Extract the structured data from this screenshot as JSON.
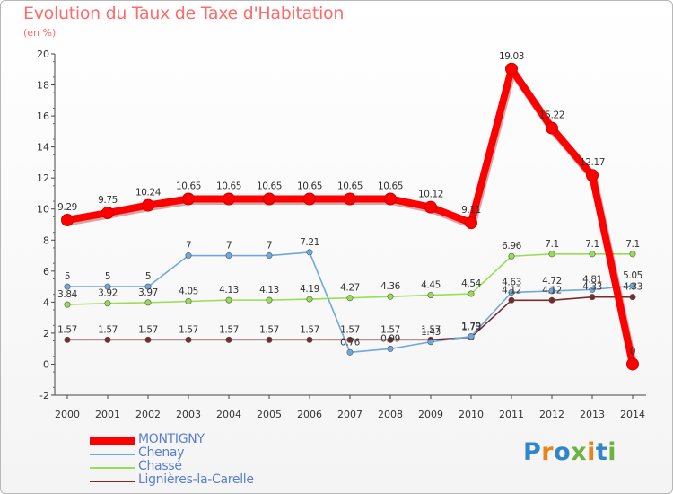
{
  "chart_data": {
    "type": "line",
    "title": "Evolution du Taux de Taxe d'Habitation",
    "ylabel": "(en %)",
    "xlabel": "",
    "x": [
      "2000",
      "2001",
      "2002",
      "2003",
      "2004",
      "2005",
      "2006",
      "2007",
      "2008",
      "2009",
      "2010",
      "2011",
      "2012",
      "2013",
      "2014"
    ],
    "ylim": [
      -2,
      20
    ],
    "yticks": [
      "-2",
      "0",
      "2",
      "4",
      "6",
      "8",
      "10",
      "12",
      "14",
      "16",
      "18",
      "20"
    ],
    "grid": false,
    "legend_position": "bottom-left",
    "series": [
      {
        "name": "MONTIGNY",
        "color": "#ff0000",
        "values": [
          9.29,
          9.75,
          10.24,
          10.65,
          10.65,
          10.65,
          10.65,
          10.65,
          10.65,
          10.12,
          9.11,
          19.03,
          15.22,
          12.17,
          0
        ],
        "labels": [
          "9.29",
          "9.75",
          "10.24",
          "10.65",
          "10.65",
          "10.65",
          "10.65",
          "10.65",
          "10.65",
          "10.12",
          "9.11",
          "19.03",
          "15.22",
          "12.17",
          "0"
        ]
      },
      {
        "name": "Chenay",
        "color": "#6fa8dc",
        "values": [
          5,
          5,
          5,
          7,
          7,
          7,
          7.21,
          0.76,
          0.99,
          1.43,
          1.79,
          4.63,
          4.72,
          4.81,
          5.05
        ],
        "labels": [
          "5",
          "5",
          "5",
          "7",
          "7",
          "7",
          "7.21",
          "0.76",
          "0.99",
          "1.43",
          "1.79",
          "4.63",
          "4.72",
          "4.81",
          "5.05"
        ]
      },
      {
        "name": "Chassé",
        "color": "#99dd55",
        "values": [
          3.84,
          3.92,
          3.97,
          4.05,
          4.13,
          4.13,
          4.19,
          4.27,
          4.36,
          4.45,
          4.54,
          6.96,
          7.1,
          7.1,
          7.1
        ],
        "labels": [
          "3.84",
          "3.92",
          "3.97",
          "4.05",
          "4.13",
          "4.13",
          "4.19",
          "4.27",
          "4.36",
          "4.45",
          "4.54",
          "6.96",
          "7.1",
          "7.1",
          "7.1"
        ]
      },
      {
        "name": "Lignières-la-Carelle",
        "color": "#7a2a2a",
        "values": [
          1.57,
          1.57,
          1.57,
          1.57,
          1.57,
          1.57,
          1.57,
          1.57,
          1.57,
          1.57,
          1.73,
          4.12,
          4.12,
          4.33,
          4.33
        ],
        "labels": [
          "1.57",
          "1.57",
          "1.57",
          "1.57",
          "1.57",
          "1.57",
          "1.57",
          "1.57",
          "1.57",
          "1.57",
          "1.73",
          "4.12",
          "4.12",
          "4.33",
          "4.33"
        ]
      }
    ]
  },
  "logo": {
    "text": "Proxiti"
  }
}
